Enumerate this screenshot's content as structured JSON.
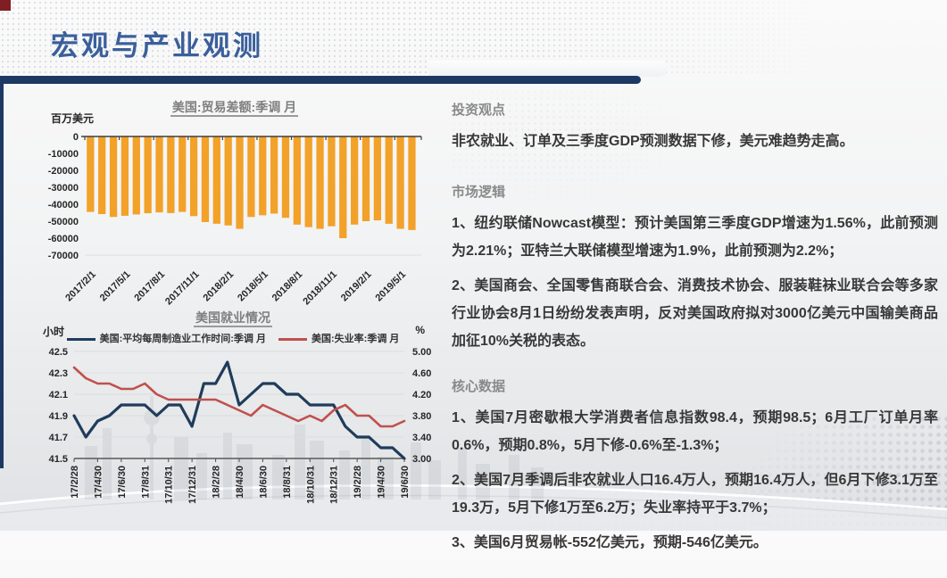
{
  "slide": {
    "title": "宏观与产业观测",
    "colors": {
      "corner_red": "#7f1f24",
      "accent_navy": "#1e3864",
      "title_blue": "#3a5f9b",
      "bar_orange": "#f2a129",
      "line_navy": "#1f3c5a",
      "line_red": "#c0504d"
    }
  },
  "chart_data": [
    {
      "type": "bar",
      "title": "美国:贸易差额:季调 月",
      "ylabel": "百万美元",
      "bar_color": "#f2a129",
      "ylim": [
        -70000,
        0
      ],
      "grid": false,
      "y_ticks": [
        0,
        -10000,
        -20000,
        -30000,
        -40000,
        -50000,
        -60000,
        -70000
      ],
      "categories": [
        "2017/2/1",
        "2017/3/1",
        "2017/4/1",
        "2017/5/1",
        "2017/6/1",
        "2017/7/1",
        "2017/8/1",
        "2017/9/1",
        "2017/10/1",
        "2017/11/1",
        "2017/12/1",
        "2018/1/1",
        "2018/2/1",
        "2018/3/1",
        "2018/4/1",
        "2018/5/1",
        "2018/6/1",
        "2018/7/1",
        "2018/8/1",
        "2018/9/1",
        "2018/10/1",
        "2018/11/1",
        "2018/12/1",
        "2019/1/1",
        "2019/2/1",
        "2019/3/1",
        "2019/4/1",
        "2019/5/1",
        "2019/6/1"
      ],
      "x_tick_labels": [
        "2017/2/1",
        "2017/5/1",
        "2017/8/1",
        "2017/11/1",
        "2018/2/1",
        "2018/5/1",
        "2018/8/1",
        "2018/11/1",
        "2019/2/1",
        "2019/5/1"
      ],
      "values": [
        -44500,
        -45800,
        -47500,
        -46800,
        -46000,
        -45300,
        -44800,
        -45200,
        -44500,
        -47000,
        -50500,
        -51500,
        -52500,
        -54500,
        -47500,
        -46500,
        -45500,
        -48000,
        -52000,
        -53500,
        -54500,
        -53000,
        -60000,
        -52000,
        -50000,
        -49500,
        -51500,
        -54500,
        -55200
      ]
    },
    {
      "type": "line",
      "title": "美国就业情况",
      "left_unit": "小时",
      "right_unit": "%",
      "left_range": [
        41.5,
        42.5
      ],
      "right_range": [
        3.0,
        5.0
      ],
      "left_ticks": [
        "42.5",
        "42.3",
        "42.1",
        "41.9",
        "41.7",
        "41.5"
      ],
      "right_ticks": [
        "5.00",
        "4.60",
        "4.20",
        "3.80",
        "3.40",
        "3.00"
      ],
      "grid": true,
      "legend_position": "top",
      "categories": [
        "17/2/28",
        "17/3/31",
        "17/4/30",
        "17/5/31",
        "17/6/30",
        "17/7/31",
        "17/8/31",
        "17/9/30",
        "17/10/31",
        "17/11/30",
        "17/12/31",
        "18/1/31",
        "18/2/28",
        "18/3/31",
        "18/4/30",
        "18/5/31",
        "18/6/30",
        "18/7/31",
        "18/8/31",
        "18/9/30",
        "18/10/31",
        "18/11/30",
        "18/12/31",
        "19/1/31",
        "19/2/28",
        "19/3/31",
        "19/4/30",
        "19/5/31",
        "19/6/30"
      ],
      "x_tick_labels": [
        "17/2/28",
        "17/4/30",
        "17/6/30",
        "17/8/31",
        "17/10/31",
        "17/12/31",
        "18/2/28",
        "18/4/30",
        "18/6/30",
        "18/8/31",
        "18/10/31",
        "18/12/31",
        "19/2/28",
        "19/4/30",
        "19/6/30"
      ],
      "series": [
        {
          "name": "美国:平均每周制造业工作时间:季调 月",
          "color": "#1f3c5a",
          "axis": "left",
          "values": [
            41.9,
            41.7,
            41.85,
            41.9,
            42.0,
            42.0,
            42.0,
            41.9,
            42.0,
            42.0,
            41.8,
            42.2,
            42.2,
            42.4,
            42.0,
            42.1,
            42.2,
            42.2,
            42.1,
            42.1,
            42.0,
            42.0,
            42.0,
            41.8,
            41.7,
            41.7,
            41.6,
            41.6,
            41.5
          ]
        },
        {
          "name": "美国:失业率:季调 月",
          "color": "#c0504d",
          "axis": "right",
          "values": [
            4.7,
            4.5,
            4.4,
            4.4,
            4.3,
            4.3,
            4.4,
            4.2,
            4.1,
            4.1,
            4.1,
            4.1,
            4.1,
            4.0,
            3.9,
            3.8,
            4.0,
            3.9,
            3.8,
            3.7,
            3.8,
            3.7,
            3.9,
            4.0,
            3.8,
            3.8,
            3.6,
            3.6,
            3.7
          ]
        }
      ]
    }
  ],
  "right_panel": {
    "sections": [
      {
        "heading": "投资观点",
        "paragraphs": [
          "非农就业、订单及三季度GDP预测数据下修，美元难趋势走高。"
        ]
      },
      {
        "heading": "市场逻辑",
        "paragraphs": [
          "1、纽约联储Nowcast模型：预计美国第三季度GDP增速为1.56%，此前预测为2.21%；亚特兰大联储模型增速为1.9%，此前预测为2.2%；",
          "2、美国商会、全国零售商联合会、消费技术协会、服装鞋袜业联合会等多家行业协会8月1日纷纷发表声明，反对美国政府拟对3000亿美元中国输美商品加征10%关税的表态。"
        ]
      },
      {
        "heading": "核心数据",
        "paragraphs": [
          "1、美国7月密歇根大学消费者信息指数98.4，预期98.5；6月工厂订单月率0.6%，预期0.8%，5月下修-0.6%至-1.3%；",
          "2、美国7月季调后非农就业人口16.4万人，预期16.4万人，但6月下修3.1万至19.3万，5月下修1万至6.2万；失业率持平于3.7%；",
          "3、美国6月贸易帐-552亿美元，预期-546亿美元。"
        ]
      }
    ]
  }
}
